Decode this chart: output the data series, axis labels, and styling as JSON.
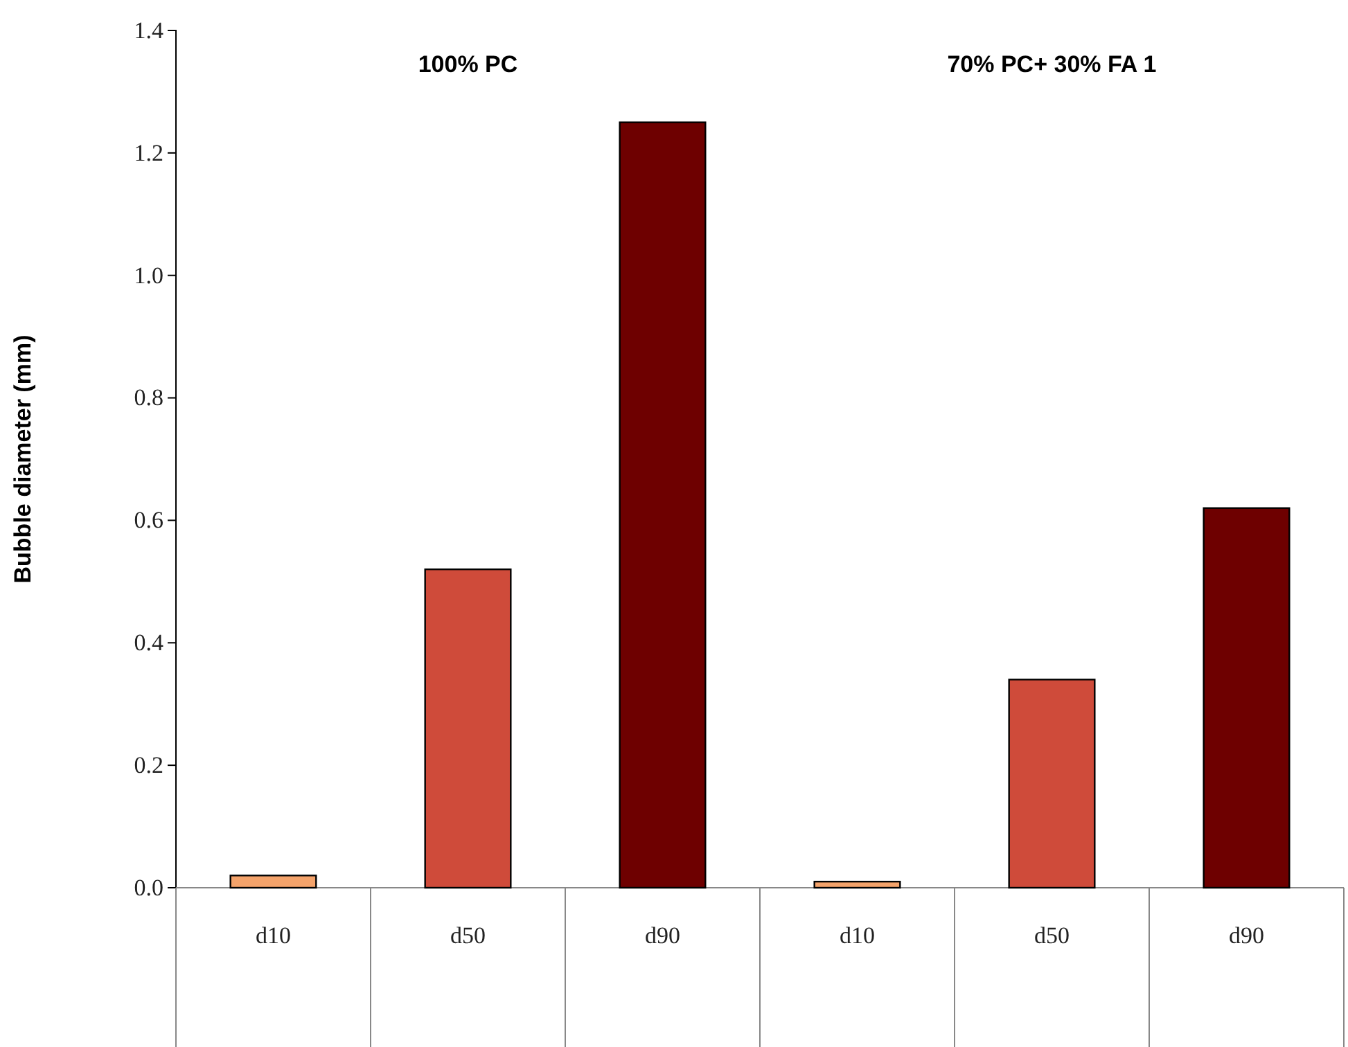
{
  "chart_data": {
    "type": "bar",
    "ylabel": "Bubble diameter (mm)",
    "categories": [
      "d10",
      "d50",
      "d90",
      "d10",
      "d50",
      "d90"
    ],
    "values": [
      0.02,
      0.52,
      1.25,
      0.01,
      0.34,
      0.62
    ],
    "colors": [
      "#f4a36b",
      "#cf4b3a",
      "#6e0000",
      "#f4a36b",
      "#cf4b3a",
      "#6e0000"
    ],
    "annotations": [
      "100% PC",
      "70% PC+ 30% FA 1"
    ],
    "ylim": [
      0,
      1.4
    ],
    "yticks": [
      {
        "value": 0,
        "label": "0.0"
      },
      0.2,
      0.4,
      0.6,
      0.8,
      {
        "value": 1,
        "label": "1.0"
      },
      1.2,
      1.4
    ]
  }
}
